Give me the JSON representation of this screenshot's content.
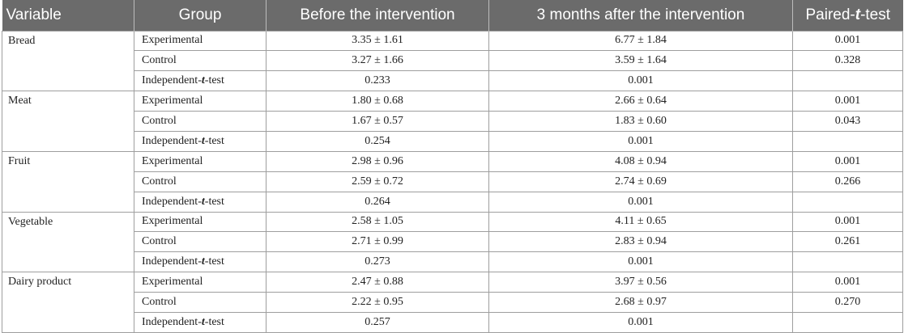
{
  "headers": [
    "Variable",
    "Group",
    "Before the intervention",
    "3 months after the intervention",
    "Paired-t-test"
  ],
  "rows": [
    {
      "variable": "Bread",
      "groups": [
        {
          "group": "Experimental",
          "before": "3.35 ± 1.61",
          "after": "6.77 ± 1.84",
          "paired": "0.001"
        },
        {
          "group": "Control",
          "before": "3.27 ± 1.66",
          "after": "3.59 ± 1.64",
          "paired": "0.328"
        },
        {
          "group": "Independent-t-test",
          "before": "0.233",
          "after": "0.001",
          "paired": ""
        }
      ]
    },
    {
      "variable": "Meat",
      "groups": [
        {
          "group": "Experimental",
          "before": "1.80 ± 0.68",
          "after": "2.66 ± 0.64",
          "paired": "0.001"
        },
        {
          "group": "Control",
          "before": "1.67 ± 0.57",
          "after": "1.83 ± 0.60",
          "paired": "0.043"
        },
        {
          "group": "Independent-t-test",
          "before": "0.254",
          "after": "0.001",
          "paired": ""
        }
      ]
    },
    {
      "variable": "Fruit",
      "groups": [
        {
          "group": "Experimental",
          "before": "2.98 ± 0.96",
          "after": "4.08 ± 0.94",
          "paired": "0.001"
        },
        {
          "group": "Control",
          "before": "2.59 ± 0.72",
          "after": "2.74 ± 0.69",
          "paired": "0.266"
        },
        {
          "group": "Independent-t-test",
          "before": "0.264",
          "after": "0.001",
          "paired": ""
        }
      ]
    },
    {
      "variable": "Vegetable",
      "groups": [
        {
          "group": "Experimental",
          "before": "2.58 ± 1.05",
          "after": "4.11 ± 0.65",
          "paired": "0.001"
        },
        {
          "group": "Control",
          "before": "2.71 ± 0.99",
          "after": "2.83 ± 0.94",
          "paired": "0.261"
        },
        {
          "group": "Independent-t-test",
          "before": "0.273",
          "after": "0.001",
          "paired": ""
        }
      ]
    },
    {
      "variable": "Dairy product",
      "groups": [
        {
          "group": "Experimental",
          "before": "2.47 ± 0.88",
          "after": "3.97 ± 0.56",
          "paired": "0.001"
        },
        {
          "group": "Control",
          "before": "2.22 ± 0.95",
          "after": "2.68 ± 0.97",
          "paired": "0.270"
        },
        {
          "group": "Independent-t-test",
          "before": "0.257",
          "after": "0.001",
          "paired": ""
        }
      ]
    }
  ]
}
